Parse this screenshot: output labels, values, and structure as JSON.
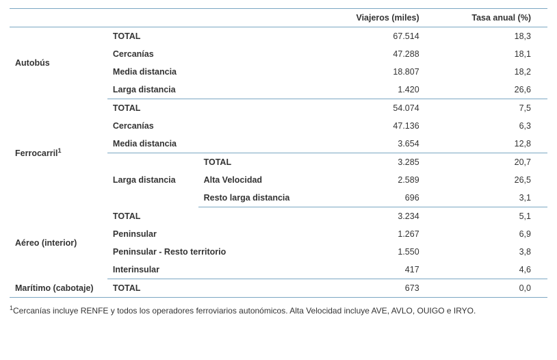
{
  "colors": {
    "border": "#7aa6c2",
    "text": "#333333",
    "background": "#ffffff"
  },
  "typography": {
    "body_font_size": 12.5,
    "footnote_font_size": 12,
    "font_family": "Arial"
  },
  "columns": {
    "viajeros": "Viajeros (miles)",
    "tasa": "Tasa anual (%)"
  },
  "sections": [
    {
      "name": "Autobús",
      "rows": [
        {
          "label": "TOTAL",
          "viajeros": "67.514",
          "tasa": "18,3"
        },
        {
          "label": "Cercanías",
          "viajeros": "47.288",
          "tasa": "18,1"
        },
        {
          "label": "Media distancia",
          "viajeros": "18.807",
          "tasa": "18,2"
        },
        {
          "label": "Larga distancia",
          "viajeros": "1.420",
          "tasa": "26,6"
        }
      ]
    },
    {
      "name": "Ferrocarril",
      "sup": "1",
      "rows": [
        {
          "label": "TOTAL",
          "viajeros": "54.074",
          "tasa": "7,5"
        },
        {
          "label": "Cercanías",
          "viajeros": "47.136",
          "tasa": "6,3"
        },
        {
          "label": "Media distancia",
          "viajeros": "3.654",
          "tasa": "12,8"
        }
      ],
      "subgroup": {
        "label": "Larga distancia",
        "rows": [
          {
            "label": "TOTAL",
            "viajeros": "3.285",
            "tasa": "20,7"
          },
          {
            "label": "Alta Velocidad",
            "viajeros": "2.589",
            "tasa": "26,5"
          },
          {
            "label": "Resto larga distancia",
            "viajeros": "696",
            "tasa": "3,1"
          }
        ]
      }
    },
    {
      "name": "Aéreo (interior)",
      "rows": [
        {
          "label": "TOTAL",
          "viajeros": "3.234",
          "tasa": "5,1"
        },
        {
          "label": "Peninsular",
          "viajeros": "1.267",
          "tasa": "6,9"
        },
        {
          "label": "Peninsular - Resto territorio",
          "viajeros": "1.550",
          "tasa": "3,8"
        },
        {
          "label": "Interinsular",
          "viajeros": "417",
          "tasa": "4,6"
        }
      ]
    },
    {
      "name": "Marítimo (cabotaje)",
      "rows": [
        {
          "label": "TOTAL",
          "viajeros": "673",
          "tasa": "0,0"
        }
      ]
    }
  ],
  "footnote": {
    "marker": "1",
    "text": "Cercanías incluye RENFE y todos los operadores ferroviarios autonómicos. Alta Velocidad incluye AVE, AVLO, OUIGO e IRYO."
  }
}
